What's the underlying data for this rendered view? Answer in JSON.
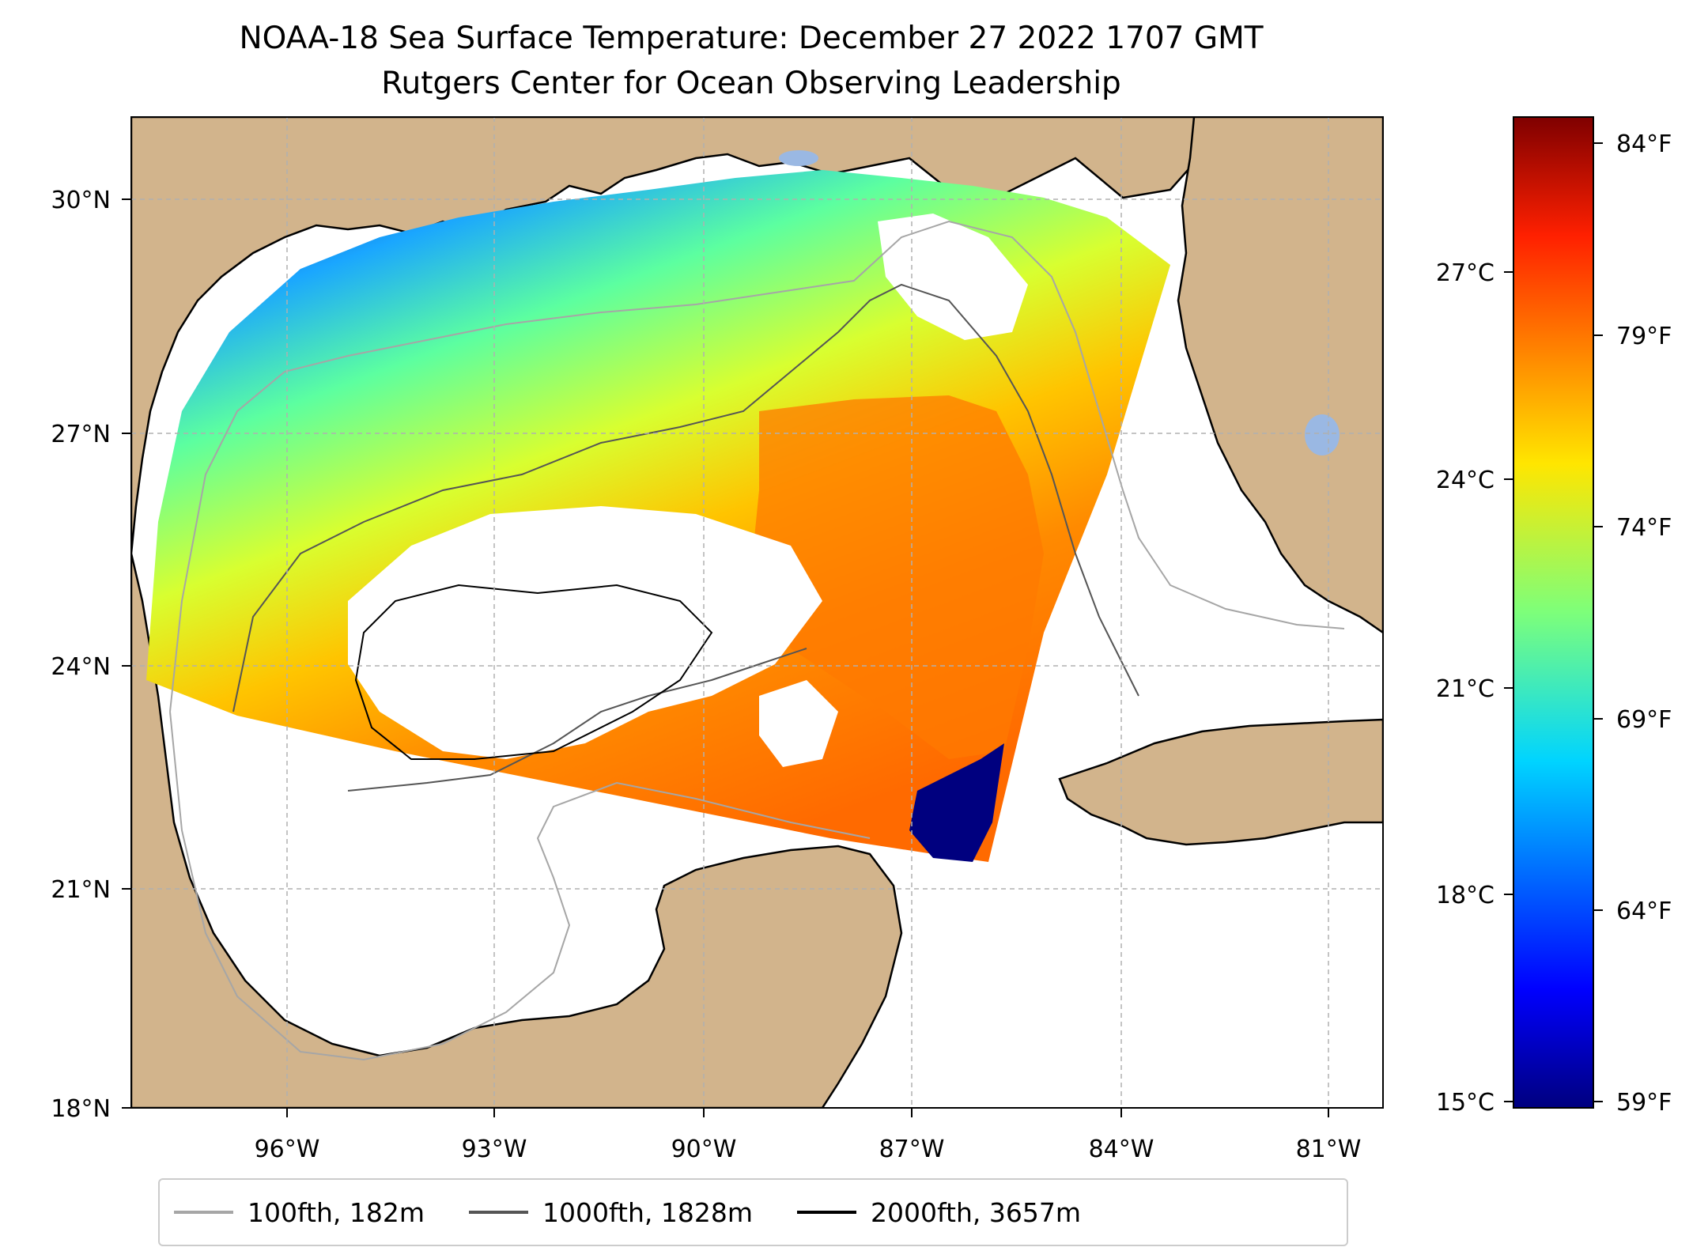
{
  "title": {
    "line1": "NOAA-18 Sea Surface Temperature: December 27 2022 1707 GMT",
    "line2": "Rutgers Center for Ocean Observing Leadership"
  },
  "axes": {
    "x_ticks": [
      "96°W",
      "93°W",
      "90°W",
      "87°W",
      "84°W",
      "81°W"
    ],
    "y_ticks": [
      "30°N",
      "27°N",
      "24°N",
      "21°N",
      "18°N"
    ]
  },
  "colorbar": {
    "celsius_ticks": [
      "27°C",
      "24°C",
      "21°C",
      "18°C",
      "15°C"
    ],
    "fahrenheit_ticks": [
      "84°F",
      "79°F",
      "74°F",
      "69°F",
      "64°F",
      "59°F"
    ],
    "colormap": "jet",
    "range_c": [
      15,
      29.2
    ]
  },
  "legend": {
    "items": [
      {
        "label": "100fth, 182m",
        "color": "#a6a6a6"
      },
      {
        "label": "1000fth, 1828m",
        "color": "#555555"
      },
      {
        "label": "2000fth, 3657m",
        "color": "#000000"
      }
    ]
  },
  "colors": {
    "land": "#d2b48c",
    "lakes": "#9ab8e3",
    "grid": "#b0b0b0"
  }
}
